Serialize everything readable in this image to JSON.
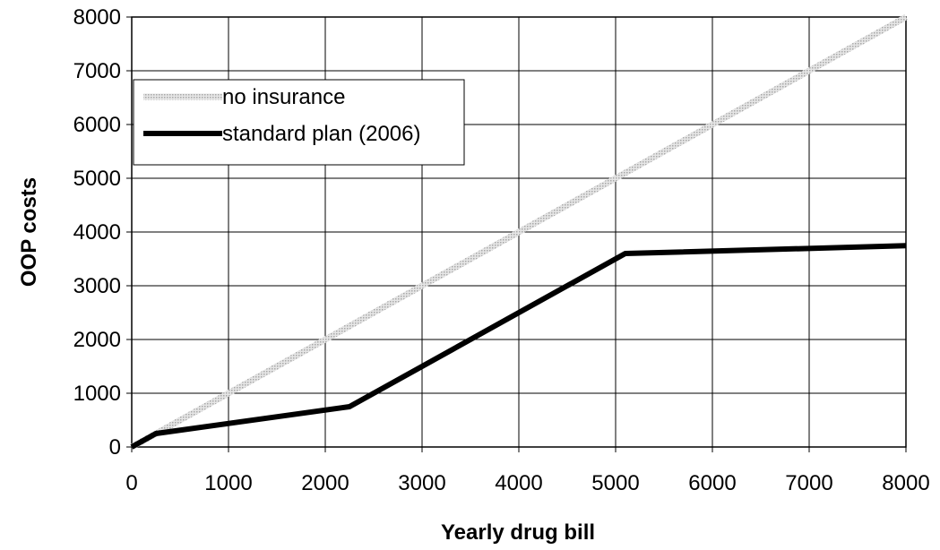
{
  "chart_data": {
    "type": "line",
    "title": "",
    "xlabel": "Yearly drug bill",
    "ylabel": "OOP costs",
    "xlim": [
      0,
      8000
    ],
    "ylim": [
      0,
      8000
    ],
    "xticks": [
      0,
      1000,
      2000,
      3000,
      4000,
      5000,
      6000,
      7000,
      8000
    ],
    "yticks": [
      0,
      1000,
      2000,
      3000,
      4000,
      5000,
      6000,
      7000,
      8000
    ],
    "grid": true,
    "legend_position": "top-left",
    "series": [
      {
        "name": "no insurance",
        "color": "#c0c0c0",
        "style": "light-dotted",
        "points": [
          [
            0,
            0
          ],
          [
            8000,
            8000
          ]
        ]
      },
      {
        "name": "standard plan (2006)",
        "color": "#000000",
        "style": "thick-solid",
        "points": [
          [
            0,
            0
          ],
          [
            250,
            250
          ],
          [
            2250,
            750
          ],
          [
            5100,
            3600
          ],
          [
            8000,
            3745
          ]
        ]
      }
    ]
  }
}
